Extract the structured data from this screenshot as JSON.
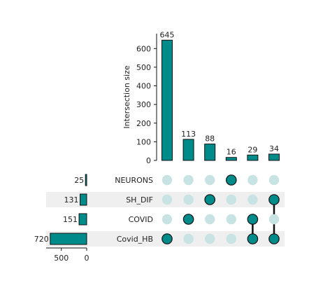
{
  "chart_data": {
    "type": "bar",
    "kind": "upset",
    "colors": {
      "bar": "#008b8b",
      "bar_edge": "#111111",
      "dot_active": "#008b8b",
      "dot_inactive": "#c8e3e3",
      "connector": "#111111",
      "stripe": "#efefef"
    },
    "intersections": {
      "ylabel": "Intersection size",
      "ylim": [
        0,
        680
      ],
      "yticks": [
        0,
        100,
        200,
        300,
        400,
        500,
        600
      ],
      "bars": [
        {
          "value": 645,
          "label": "645",
          "members": [
            "Covid_HB"
          ]
        },
        {
          "value": 113,
          "label": "113",
          "members": [
            "COVID"
          ]
        },
        {
          "value": 88,
          "label": "88",
          "members": [
            "SH_DIF"
          ]
        },
        {
          "value": 16,
          "label": "16",
          "members": [
            "NEURONS"
          ]
        },
        {
          "value": 29,
          "label": "29",
          "members": [
            "COVID",
            "Covid_HB"
          ]
        },
        {
          "value": 34,
          "label": "34",
          "members": [
            "SH_DIF",
            "Covid_HB"
          ]
        }
      ]
    },
    "sets": [
      {
        "name": "NEURONS",
        "size": 25,
        "label": "25"
      },
      {
        "name": "SH_DIF",
        "size": 131,
        "label": "131"
      },
      {
        "name": "COVID",
        "size": 151,
        "label": "151"
      },
      {
        "name": "Covid_HB",
        "size": 720,
        "label": "720"
      }
    ],
    "set_axis": {
      "ticks": [
        500,
        0
      ],
      "max": 800,
      "reversed": true
    },
    "grid": false
  }
}
